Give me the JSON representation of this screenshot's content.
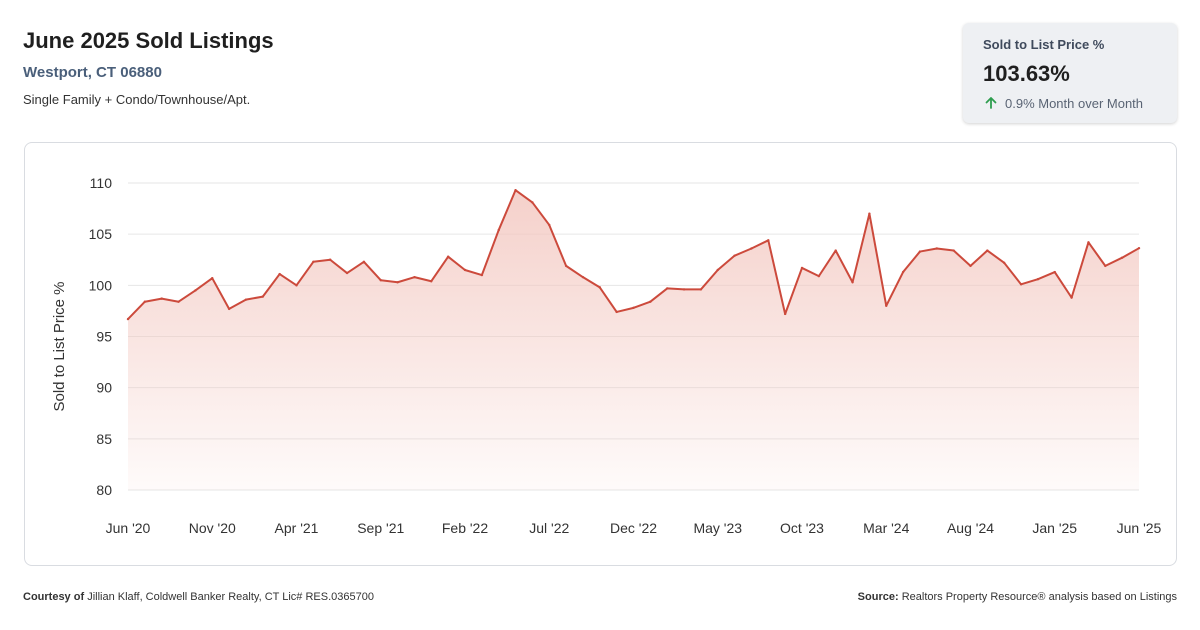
{
  "header": {
    "title": "June 2025 Sold Listings",
    "location": "Westport, CT 06880",
    "subtitle": "Single Family + Condo/Townhouse/Apt."
  },
  "kpi": {
    "label": "Sold to List Price %",
    "value": "103.63%",
    "change": "0.9% Month over Month",
    "arrow_icon": "arrow-up-icon",
    "arrow_color": "#2e9d4f"
  },
  "footer": {
    "courtesy_prefix": "Courtesy of",
    "courtesy_text": "Jillian Klaff, Coldwell Banker Realty, CT Lic# RES.0365700",
    "source_prefix": "Source:",
    "source_text": "Realtors Property Resource® analysis based on Listings"
  },
  "colors": {
    "line": "#cc4a3c",
    "area_top": "#f3c8c1",
    "grid": "#e6e6e6"
  },
  "chart_data": {
    "type": "area",
    "ylabel": "Sold to List Price %",
    "xlabel": "",
    "ylim": [
      80,
      110
    ],
    "yticks": [
      80,
      85,
      90,
      95,
      100,
      105,
      110
    ],
    "xtick_labels": [
      "Jun '20",
      "Nov '20",
      "Apr '21",
      "Sep '21",
      "Feb '22",
      "Jul '22",
      "Dec '22",
      "May '23",
      "Oct '23",
      "Mar '24",
      "Aug '24",
      "Jan '25",
      "Jun '25"
    ],
    "x": [
      "Jun '20",
      "Jul '20",
      "Aug '20",
      "Sep '20",
      "Oct '20",
      "Nov '20",
      "Dec '20",
      "Jan '21",
      "Feb '21",
      "Mar '21",
      "Apr '21",
      "May '21",
      "Jun '21",
      "Jul '21",
      "Aug '21",
      "Sep '21",
      "Oct '21",
      "Nov '21",
      "Dec '21",
      "Jan '22",
      "Feb '22",
      "Mar '22",
      "Apr '22",
      "May '22",
      "Jun '22",
      "Jul '22",
      "Aug '22",
      "Sep '22",
      "Oct '22",
      "Nov '22",
      "Dec '22",
      "Jan '23",
      "Feb '23",
      "Mar '23",
      "Apr '23",
      "May '23",
      "Jun '23",
      "Jul '23",
      "Aug '23",
      "Sep '23",
      "Oct '23",
      "Nov '23",
      "Dec '23",
      "Jan '24",
      "Feb '24",
      "Mar '24",
      "Apr '24",
      "May '24",
      "Jun '24",
      "Jul '24",
      "Aug '24",
      "Sep '24",
      "Oct '24",
      "Nov '24",
      "Dec '24",
      "Jan '25",
      "Feb '25",
      "Mar '25",
      "Apr '25",
      "May '25",
      "Jun '25"
    ],
    "grid": true,
    "series": [
      {
        "values": [
          96.7,
          98.4,
          98.7,
          98.4,
          99.5,
          100.7,
          97.7,
          98.6,
          98.9,
          101.1,
          100.0,
          102.3,
          102.5,
          101.2,
          102.3,
          100.5,
          100.3,
          100.8,
          100.4,
          102.8,
          101.5,
          101.0,
          105.4,
          109.3,
          108.1,
          105.9,
          101.9,
          100.8,
          99.8,
          97.4,
          97.8,
          98.4,
          99.7,
          99.6,
          99.6,
          101.5,
          102.9,
          103.6,
          104.4,
          97.2,
          101.7,
          100.9,
          103.4,
          100.3,
          107.0,
          98.0,
          101.3,
          103.3,
          103.6,
          103.4,
          101.9,
          103.4,
          102.2,
          100.1,
          100.6,
          101.3,
          98.8,
          104.2,
          101.9,
          102.7,
          103.63
        ]
      }
    ]
  }
}
